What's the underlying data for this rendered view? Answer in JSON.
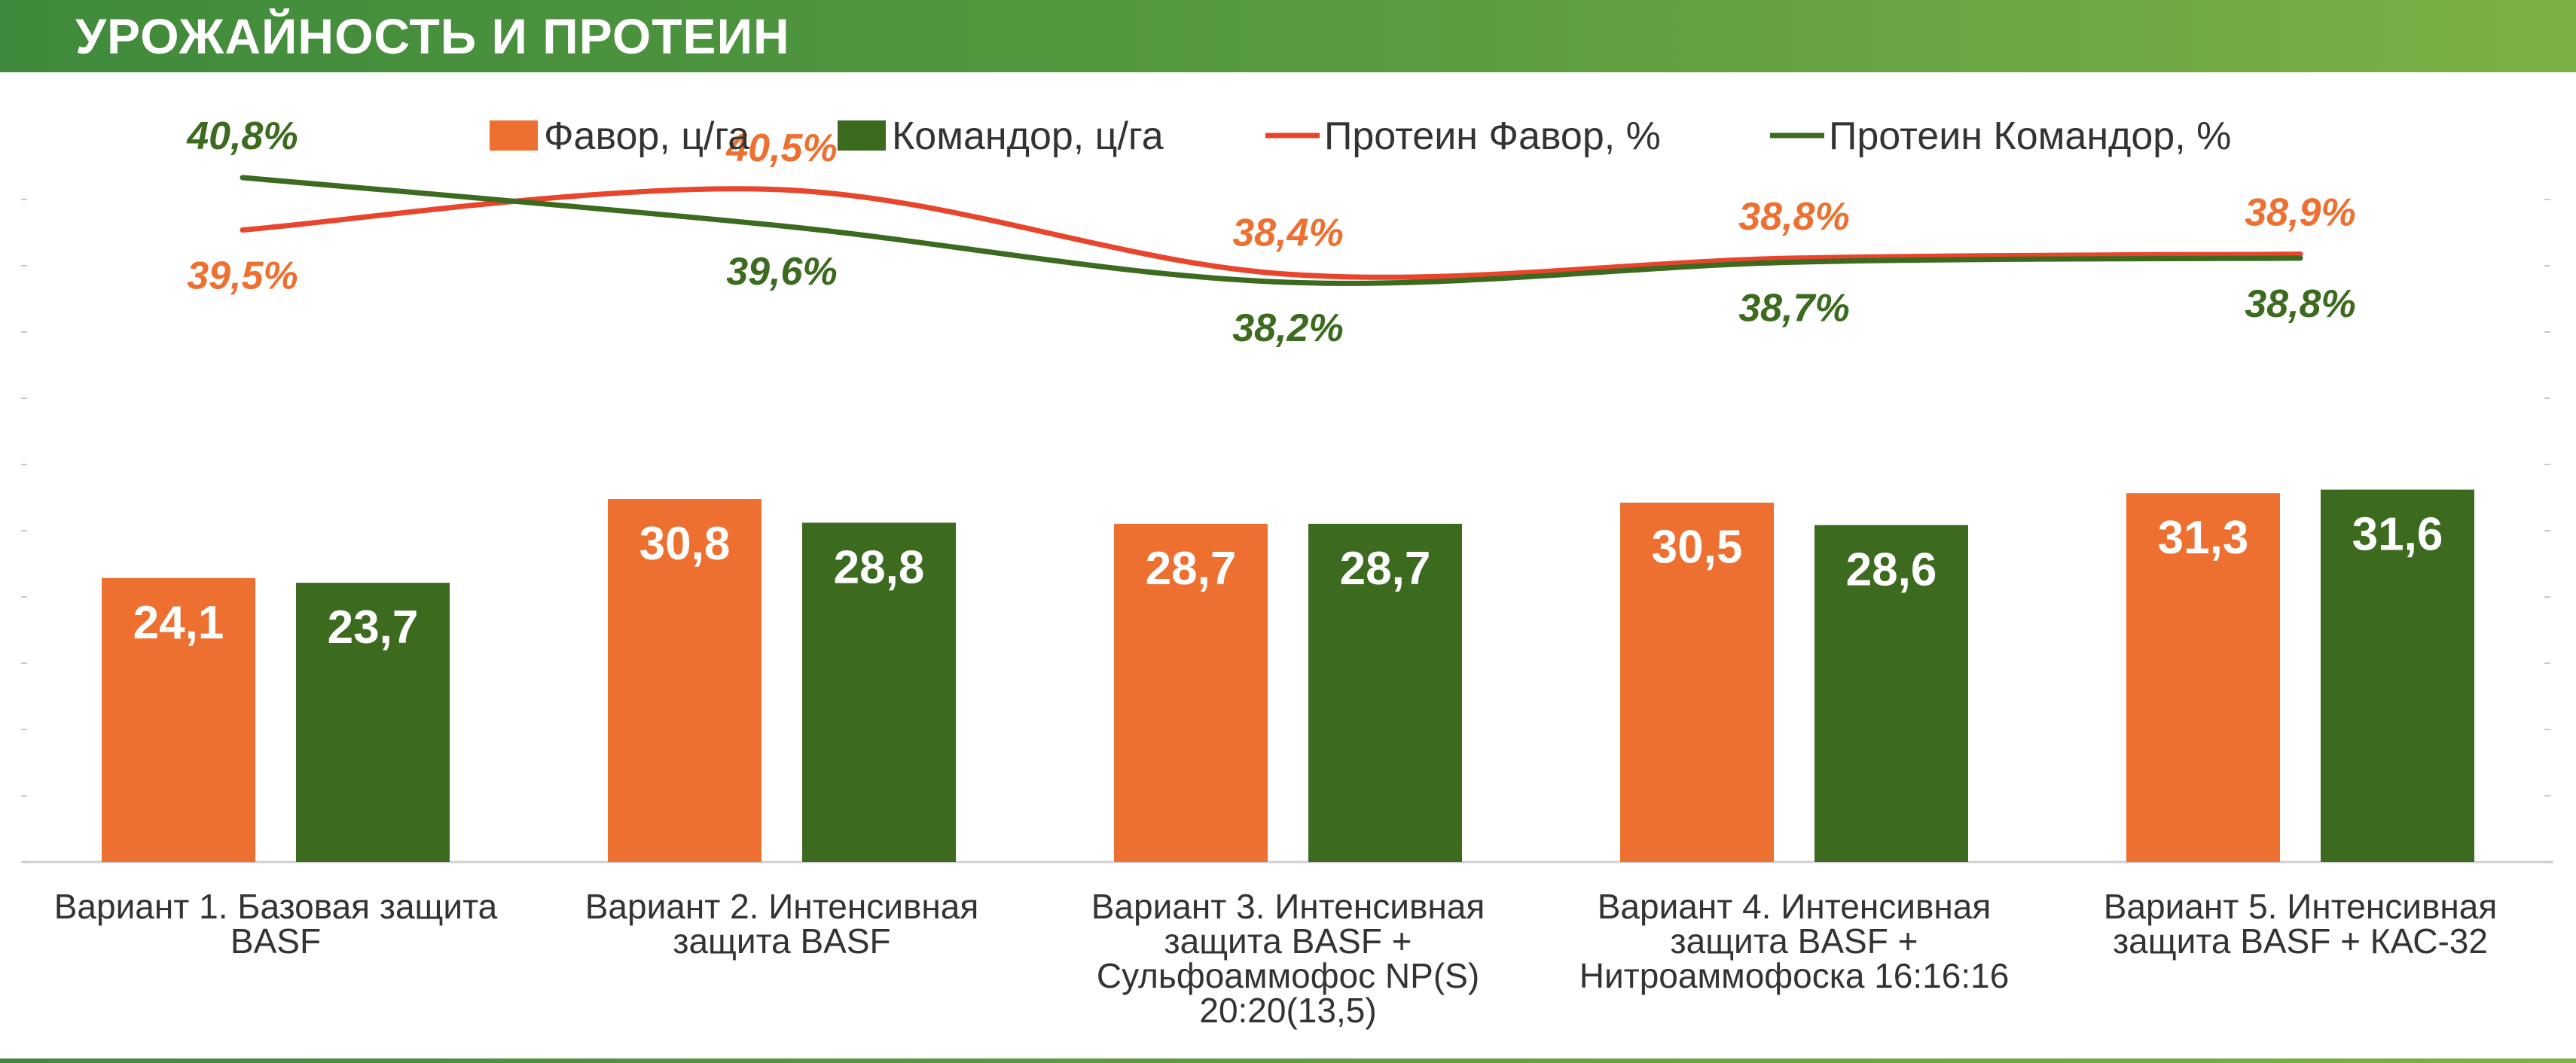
{
  "header": {
    "title": "УРОЖАЙНОСТЬ И ПРОТЕИН"
  },
  "colors": {
    "favor": "#ee7030",
    "komandor": "#3c6a1e",
    "favor_line": "#e8452c",
    "komandor_line": "#3c6a1e",
    "favor_label": "#ee7030",
    "komandor_label": "#3c6a1e"
  },
  "chart_data": {
    "type": "bar",
    "title": "УРОЖАЙНОСТЬ И ПРОТЕИН",
    "categories": [
      [
        "Вариант 1. Базовая защита",
        "BASF"
      ],
      [
        "Вариант 2. Интенсивная",
        "защита BASF"
      ],
      [
        "Вариант 3. Интенсивная",
        "защита BASF +",
        "Сульфоаммофос NP(S)",
        "20:20(13,5)"
      ],
      [
        "Вариант 4. Интенсивная",
        "защита BASF +",
        "Нитроаммофоска 16:16:16"
      ],
      [
        "Вариант 5. Интенсивная",
        "защита BASF + КАС-32"
      ]
    ],
    "bar_ylim": [
      0,
      50
    ],
    "line_ylim": [
      30,
      42
    ],
    "grid": false,
    "legend_position": "top",
    "series": [
      {
        "name": "Фавор, ц/га",
        "kind": "bar",
        "values": [
          24.1,
          30.8,
          28.7,
          30.5,
          31.3
        ],
        "labels": [
          "24,1",
          "30,8",
          "28,7",
          "30,5",
          "31,3"
        ]
      },
      {
        "name": "Командор, ц/га",
        "kind": "bar",
        "values": [
          23.7,
          28.8,
          28.7,
          28.6,
          31.6
        ],
        "labels": [
          "23,7",
          "28,8",
          "28,7",
          "28,6",
          "31,6"
        ]
      },
      {
        "name": "Протеин Фавор, %",
        "kind": "line",
        "values": [
          39.5,
          40.5,
          38.4,
          38.8,
          38.9
        ],
        "labels": [
          "39,5%",
          "40,5%",
          "38,4%",
          "38,8%",
          "38,9%"
        ]
      },
      {
        "name": "Протеин Командор, %",
        "kind": "line",
        "values": [
          40.8,
          39.6,
          38.2,
          38.7,
          38.8
        ],
        "labels": [
          "40,8%",
          "39,6%",
          "38,2%",
          "38,7%",
          "38,8%"
        ]
      }
    ]
  }
}
